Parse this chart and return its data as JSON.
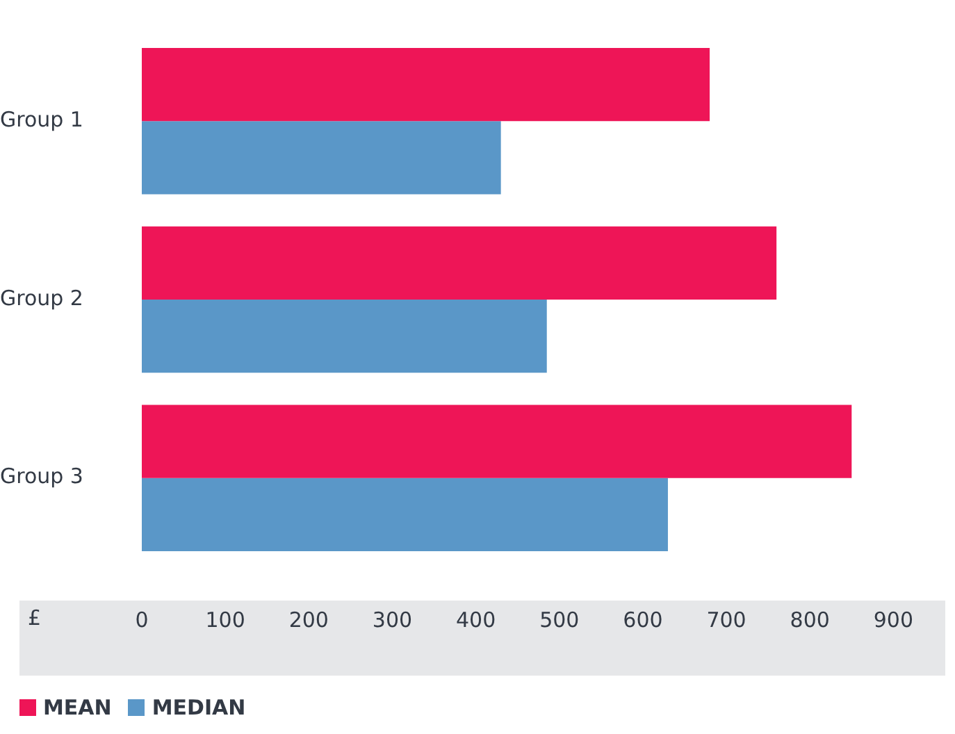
{
  "chart_data": {
    "type": "bar",
    "orientation": "horizontal",
    "xlabel": "£",
    "categories": [
      "Group 1",
      "Group 2",
      "Group 3"
    ],
    "series": [
      {
        "name": "MEAN",
        "color": "#ee1557",
        "values": [
          680,
          760,
          850
        ]
      },
      {
        "name": "MEDIAN",
        "color": "#5a97c8",
        "values": [
          430,
          485,
          630
        ]
      }
    ],
    "xlim": [
      0,
      900
    ],
    "xticks": [
      0,
      100,
      200,
      300,
      400,
      500,
      600,
      700,
      800,
      900
    ],
    "grid": false,
    "legend": "bottom left"
  }
}
